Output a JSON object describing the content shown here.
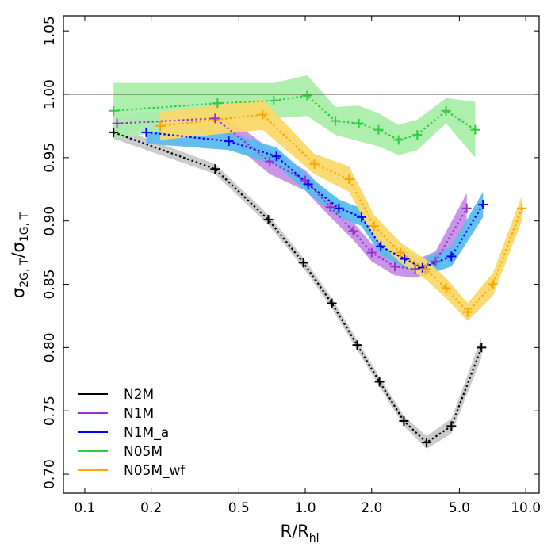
{
  "chart_data": {
    "type": "line",
    "xlabel": {
      "main": "R/R",
      "sub": "hl"
    },
    "ylabel": {
      "sigma1": "σ",
      "sub1": "2G, T",
      "slash": "/",
      "sigma2": "σ",
      "sub2": "1G, T"
    },
    "xscale": "log",
    "xlim": [
      0.08,
      11.5
    ],
    "ylim": [
      0.685,
      1.062
    ],
    "xticks": [
      {
        "value": 0.1,
        "label": "0.1"
      },
      {
        "value": 0.2,
        "label": "0.2"
      },
      {
        "value": 0.5,
        "label": "0.5"
      },
      {
        "value": 1.0,
        "label": "1.0"
      },
      {
        "value": 2.0,
        "label": "2.0"
      },
      {
        "value": 5.0,
        "label": "5.0"
      },
      {
        "value": 10.0,
        "label": "10.0"
      }
    ],
    "yticks": [
      {
        "value": 0.7,
        "label": "0.70"
      },
      {
        "value": 0.75,
        "label": "0.75"
      },
      {
        "value": 0.8,
        "label": "0.80"
      },
      {
        "value": 0.85,
        "label": "0.85"
      },
      {
        "value": 0.9,
        "label": "0.90"
      },
      {
        "value": 0.95,
        "label": "0.95"
      },
      {
        "value": 1.0,
        "label": "1.00"
      },
      {
        "value": 1.05,
        "label": "1.05"
      }
    ],
    "reference_line": 1.0,
    "legend_position": "bottom-left",
    "series": [
      {
        "name": "N2M",
        "color": "#000000",
        "band_color": "#c8c8c8",
        "x": [
          0.135,
          0.39,
          0.68,
          0.98,
          1.32,
          1.72,
          2.17,
          2.8,
          3.55,
          4.6,
          6.3
        ],
        "y": [
          0.97,
          0.941,
          0.901,
          0.867,
          0.835,
          0.802,
          0.773,
          0.742,
          0.725,
          0.738,
          0.8
        ],
        "err": [
          0.005,
          0.004,
          0.004,
          0.004,
          0.004,
          0.004,
          0.004,
          0.004,
          0.005,
          0.006,
          0.008
        ]
      },
      {
        "name": "N1M",
        "color": "#9932cc",
        "band_color": "#c78fe8",
        "x": [
          0.14,
          0.39,
          0.69,
          1.0,
          1.3,
          1.65,
          2.0,
          2.55,
          3.15,
          3.9,
          5.4
        ],
        "y": [
          0.977,
          0.981,
          0.947,
          0.932,
          0.911,
          0.892,
          0.875,
          0.864,
          0.862,
          0.868,
          0.91
        ],
        "err": [
          0.006,
          0.008,
          0.01,
          0.008,
          0.008,
          0.007,
          0.007,
          0.007,
          0.007,
          0.008,
          0.012
        ]
      },
      {
        "name": "N1M_a",
        "color": "#0000ff",
        "band_color": "#5ab9ef",
        "x": [
          0.19,
          0.45,
          0.74,
          1.03,
          1.42,
          1.8,
          2.2,
          2.82,
          3.4,
          4.6,
          6.4
        ],
        "y": [
          0.97,
          0.963,
          0.951,
          0.929,
          0.91,
          0.903,
          0.88,
          0.87,
          0.863,
          0.872,
          0.913
        ],
        "err": [
          0.009,
          0.007,
          0.007,
          0.007,
          0.007,
          0.007,
          0.007,
          0.007,
          0.007,
          0.008,
          0.01
        ]
      },
      {
        "name": "N05M",
        "color": "#2ecc40",
        "band_color": "#aaeeaa",
        "x": [
          0.135,
          0.4,
          0.72,
          1.02,
          1.37,
          1.75,
          2.15,
          2.65,
          3.22,
          4.35,
          5.9
        ],
        "y": [
          0.987,
          0.993,
          0.995,
          0.999,
          0.979,
          0.977,
          0.972,
          0.964,
          0.968,
          0.987,
          0.972
        ],
        "err": [
          0.022,
          0.016,
          0.014,
          0.016,
          0.011,
          0.014,
          0.013,
          0.012,
          0.012,
          0.01,
          0.022
        ]
      },
      {
        "name": "N05M_wf",
        "color": "#ffa500",
        "band_color": "#f9d969",
        "x": [
          0.22,
          0.64,
          1.1,
          1.58,
          2.05,
          2.7,
          3.5,
          4.35,
          5.45,
          7.1,
          9.6
        ],
        "y": [
          0.975,
          0.984,
          0.945,
          0.933,
          0.896,
          0.875,
          0.862,
          0.847,
          0.828,
          0.85,
          0.91
        ],
        "err": [
          0.011,
          0.012,
          0.008,
          0.01,
          0.009,
          0.008,
          0.008,
          0.008,
          0.007,
          0.009,
          0.01
        ]
      }
    ]
  }
}
